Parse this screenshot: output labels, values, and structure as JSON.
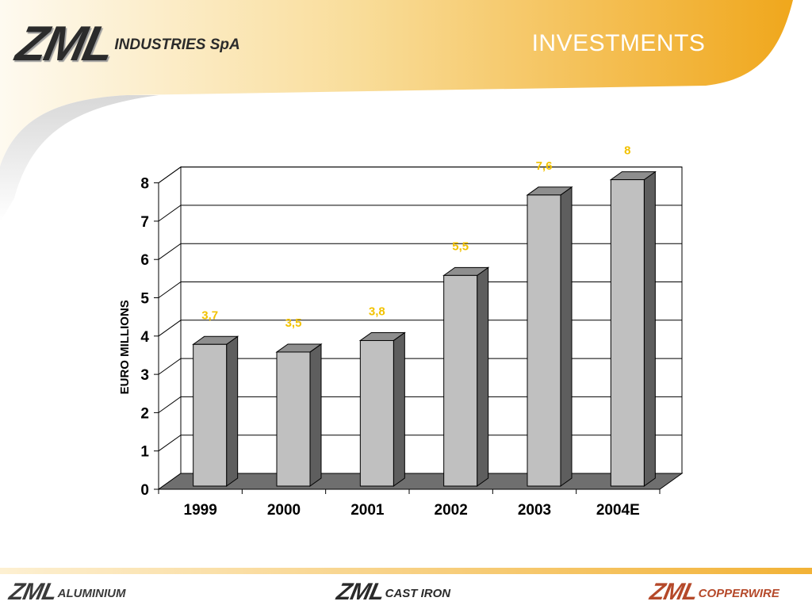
{
  "header": {
    "logo_mark": "ZML",
    "logo_text": "INDUSTRIES SpA",
    "title": "INVESTMENTS"
  },
  "footer": {
    "logos": [
      {
        "mark": "ZML",
        "text": "ALUMINIUM"
      },
      {
        "mark": "ZML",
        "text": "CAST IRON"
      },
      {
        "mark": "ZML",
        "text": "COPPERWIRE"
      }
    ]
  },
  "colors": {
    "banner_light": "#fdf3dc",
    "banner_dark": "#f0a71c",
    "label": "#f2c200",
    "bar_front": "#c0c0c0",
    "bar_side": "#5e5e5e",
    "floor": "#6f6f6f"
  },
  "chart_data": {
    "type": "bar",
    "style": "3d",
    "categories": [
      "1999",
      "2000",
      "2001",
      "2002",
      "2003",
      "2004E"
    ],
    "values": [
      3.7,
      3.5,
      3.8,
      5.5,
      7.6,
      8
    ],
    "value_labels": [
      "3,7",
      "3,5",
      "3,8",
      "5,5",
      "7,6",
      "8"
    ],
    "ylabel": "EURO MILLIONS",
    "xlabel": "",
    "ylim": [
      0,
      8
    ],
    "yticks": [
      "0",
      "1",
      "2",
      "3",
      "4",
      "5",
      "6",
      "7",
      "8"
    ],
    "grid": true,
    "legend": "none"
  }
}
